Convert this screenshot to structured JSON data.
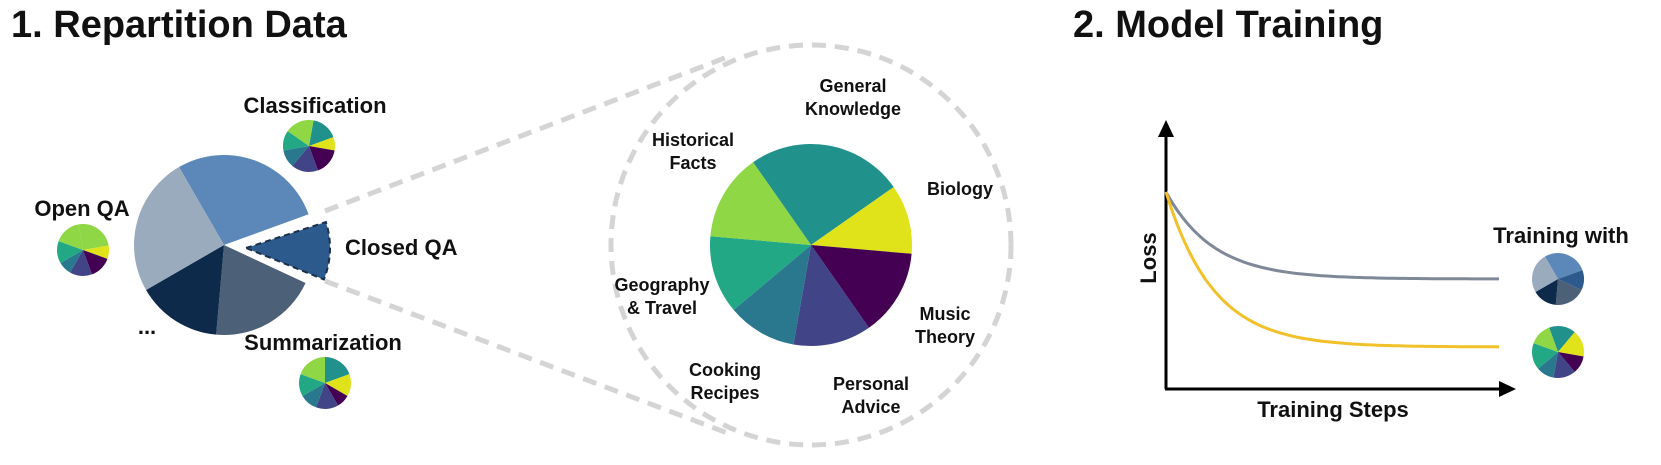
{
  "sections": [
    {
      "title": "1. Repartition Data"
    },
    {
      "title": "2. Model Training"
    }
  ],
  "tasks": [
    "Classification",
    "Open QA",
    "Closed QA",
    "Summarization",
    "..."
  ],
  "topics": [
    [
      "General",
      "Knowledge"
    ],
    [
      "Historical",
      "Facts"
    ],
    [
      "Biology"
    ],
    [
      "Geography",
      "& Travel"
    ],
    [
      "Music",
      "Theory"
    ],
    [
      "Cooking",
      "Recipes"
    ],
    [
      "Personal",
      "Advice"
    ]
  ],
  "plot": {
    "y_label": "Loss",
    "x_label": "Training Steps",
    "legend_title": "Training with"
  }
}
